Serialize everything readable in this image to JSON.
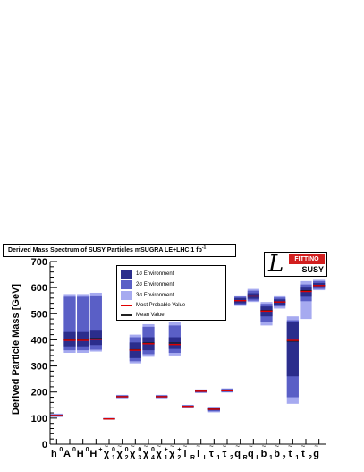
{
  "title": {
    "text": "Derived Mass Spectrum of SUSY Particles mSUGRA LE+LHC 1 fb",
    "sup": "-1"
  },
  "logo": {
    "top_text": "FITTINO",
    "bottom_text": "SUSY",
    "letter": "L"
  },
  "legend": {
    "items": [
      {
        "label": "1σ Environment",
        "color": "#2b2d8c",
        "kind": "box"
      },
      {
        "label": "2σ Environment",
        "color": "#5a5fc6",
        "kind": "box"
      },
      {
        "label": "3σ Environment",
        "color": "#a6aaf0",
        "kind": "box"
      },
      {
        "label": "Most Probable Value",
        "color": "#e00000",
        "kind": "line"
      },
      {
        "label": "Mean Value",
        "color": "#202020",
        "kind": "line"
      }
    ]
  },
  "colors": {
    "sigma1": "#2b2d8c",
    "sigma2": "#5a5fc6",
    "sigma3": "#a6aaf0",
    "most_probable": "#e00000",
    "mean": "#1a1a1a"
  },
  "chart_data": {
    "type": "bar",
    "title": "Derived Mass Spectrum of SUSY Particles mSUGRA LE+LHC 1 fb-1",
    "ylabel": "Derived Particle Mass [GeV]",
    "xlabel": "",
    "ylim": [
      0,
      700
    ],
    "yticks": [
      0,
      100,
      200,
      300,
      400,
      500,
      600,
      700
    ],
    "grid": false,
    "legend_position": "top-center",
    "categories": [
      "h0",
      "A0",
      "H0",
      "H+",
      "χ10",
      "χ20",
      "χ30",
      "χ40",
      "χ1+",
      "χ2+",
      "ẽR",
      "ẽL",
      "τ̃1",
      "τ̃2",
      "q̃R",
      "q̃L",
      "b̃1",
      "b̃2",
      "t̃1",
      "t̃2",
      "g̃"
    ],
    "category_labels": [
      {
        "base": "h",
        "sup": "0",
        "sub": "",
        "tilde": false
      },
      {
        "base": "A",
        "sup": "0",
        "sub": "",
        "tilde": false
      },
      {
        "base": "H",
        "sup": "0",
        "sub": "",
        "tilde": false
      },
      {
        "base": "H",
        "sup": "+",
        "sub": "",
        "tilde": false
      },
      {
        "base": "χ",
        "sup": "0",
        "sub": "1",
        "tilde": true
      },
      {
        "base": "χ",
        "sup": "0",
        "sub": "2",
        "tilde": true
      },
      {
        "base": "χ",
        "sup": "0",
        "sub": "3",
        "tilde": true
      },
      {
        "base": "χ",
        "sup": "0",
        "sub": "4",
        "tilde": true
      },
      {
        "base": "χ",
        "sup": "+",
        "sub": "1",
        "tilde": true
      },
      {
        "base": "χ",
        "sup": "+",
        "sub": "2",
        "tilde": true
      },
      {
        "base": "l",
        "sup": "",
        "sub": "R",
        "tilde": true
      },
      {
        "base": "l",
        "sup": "",
        "sub": "L",
        "tilde": true
      },
      {
        "base": "τ",
        "sup": "",
        "sub": "1",
        "tilde": true
      },
      {
        "base": "τ",
        "sup": "",
        "sub": "2",
        "tilde": true
      },
      {
        "base": "q",
        "sup": "",
        "sub": "R",
        "tilde": true
      },
      {
        "base": "q",
        "sup": "",
        "sub": "L",
        "tilde": true
      },
      {
        "base": "b",
        "sup": "",
        "sub": "1",
        "tilde": true
      },
      {
        "base": "b",
        "sup": "",
        "sub": "2",
        "tilde": true
      },
      {
        "base": "t",
        "sup": "",
        "sub": "1",
        "tilde": true
      },
      {
        "base": "t",
        "sup": "",
        "sub": "2",
        "tilde": true
      },
      {
        "base": "g",
        "sup": "",
        "sub": "",
        "tilde": true
      }
    ],
    "particles": [
      {
        "s3": [
          104,
          117
        ],
        "s2": [
          106,
          114
        ],
        "s1": [
          108,
          112
        ],
        "most_probable": 110,
        "mean": 110
      },
      {
        "s3": [
          350,
          575
        ],
        "s2": [
          360,
          565
        ],
        "s1": [
          375,
          430
        ],
        "most_probable": 398,
        "mean": 400
      },
      {
        "s3": [
          350,
          575
        ],
        "s2": [
          360,
          565
        ],
        "s1": [
          375,
          430
        ],
        "most_probable": 398,
        "mean": 401
      },
      {
        "s3": [
          355,
          580
        ],
        "s2": [
          362,
          570
        ],
        "s1": [
          380,
          435
        ],
        "most_probable": 402,
        "mean": 405
      },
      {
        "s3": [
          94,
          101
        ],
        "s2": [
          95,
          100
        ],
        "s1": [
          96,
          99
        ],
        "most_probable": 97,
        "mean": 97
      },
      {
        "s3": [
          176,
          189
        ],
        "s2": [
          178,
          187
        ],
        "s1": [
          180,
          185
        ],
        "most_probable": 182,
        "mean": 182
      },
      {
        "s3": [
          310,
          420
        ],
        "s2": [
          318,
          410
        ],
        "s1": [
          330,
          390
        ],
        "most_probable": 360,
        "mean": 362
      },
      {
        "s3": [
          335,
          460
        ],
        "s2": [
          345,
          450
        ],
        "s1": [
          360,
          410
        ],
        "most_probable": 385,
        "mean": 388
      },
      {
        "s3": [
          176,
          189
        ],
        "s2": [
          178,
          187
        ],
        "s1": [
          180,
          185
        ],
        "most_probable": 182,
        "mean": 182
      },
      {
        "s3": [
          340,
          470
        ],
        "s2": [
          350,
          455
        ],
        "s1": [
          365,
          410
        ],
        "most_probable": 382,
        "mean": 388
      },
      {
        "s3": [
          140,
          151
        ],
        "s2": [
          142,
          149
        ],
        "s1": [
          143,
          148
        ],
        "most_probable": 145,
        "mean": 145
      },
      {
        "s3": [
          196,
          210
        ],
        "s2": [
          198,
          208
        ],
        "s1": [
          200,
          206
        ],
        "most_probable": 203,
        "mean": 203
      },
      {
        "s3": [
          122,
          144
        ],
        "s2": [
          126,
          141
        ],
        "s1": [
          130,
          138
        ],
        "most_probable": 134,
        "mean": 135
      },
      {
        "s3": [
          198,
          214
        ],
        "s2": [
          200,
          212
        ],
        "s1": [
          202,
          209
        ],
        "most_probable": 205,
        "mean": 206
      },
      {
        "s3": [
          530,
          570
        ],
        "s2": [
          535,
          565
        ],
        "s1": [
          540,
          560
        ],
        "most_probable": 550,
        "mean": 550
      },
      {
        "s3": [
          545,
          595
        ],
        "s2": [
          550,
          588
        ],
        "s1": [
          557,
          578
        ],
        "most_probable": 568,
        "mean": 568
      },
      {
        "s3": [
          455,
          545
        ],
        "s2": [
          470,
          538
        ],
        "s1": [
          490,
          528
        ],
        "most_probable": 510,
        "mean": 512
      },
      {
        "s3": [
          520,
          570
        ],
        "s2": [
          528,
          562
        ],
        "s1": [
          535,
          555
        ],
        "most_probable": 545,
        "mean": 545
      },
      {
        "s3": [
          155,
          490
        ],
        "s2": [
          180,
          475
        ],
        "s1": [
          260,
          470
        ],
        "most_probable": 398,
        "mean": 395
      },
      {
        "s3": [
          480,
          625
        ],
        "s2": [
          548,
          612
        ],
        "s1": [
          565,
          600
        ],
        "most_probable": 585,
        "mean": 588
      },
      {
        "s3": [
          590,
          630
        ],
        "s2": [
          595,
          625
        ],
        "s1": [
          600,
          618
        ],
        "most_probable": 608,
        "mean": 608
      }
    ]
  }
}
